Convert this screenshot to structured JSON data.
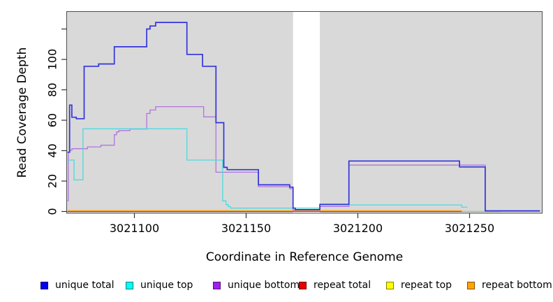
{
  "chart_data": {
    "type": "line",
    "subtype": "step",
    "title": "",
    "xlabel": "Coordinate in Reference Genome",
    "ylabel": "Read Coverage Depth",
    "xlim": [
      3021069.7,
      3021282.5
    ],
    "ylim": [
      0,
      131.5
    ],
    "grid": false,
    "plot_background": "#d9d9d9",
    "no_data_band": {
      "x_start": 3021171,
      "x_end": 3021183
    },
    "x_ticks": [
      {
        "value": 3021100,
        "label": "3021100"
      },
      {
        "value": 3021150,
        "label": "3021150"
      },
      {
        "value": 3021200,
        "label": "3021200"
      },
      {
        "value": 3021250,
        "label": "3021250"
      }
    ],
    "y_ticks": [
      {
        "value": 0,
        "label": "0"
      },
      {
        "value": 20,
        "label": "20"
      },
      {
        "value": 40,
        "label": "40"
      },
      {
        "value": 60,
        "label": "60"
      },
      {
        "value": 80,
        "label": "80"
      },
      {
        "value": 100,
        "label": "100"
      },
      {
        "value": 120,
        "label": ""
      }
    ],
    "series": [
      {
        "name": "repeat total",
        "color": "#cc0000",
        "width": 1.2,
        "points": [
          [
            3021070,
            0
          ],
          [
            3021246.5,
            0
          ]
        ]
      },
      {
        "name": "repeat top",
        "color": "#8fce8f",
        "width": 1.6,
        "points": [
          [
            3021246.5,
            0
          ],
          [
            3021264,
            0
          ]
        ]
      },
      {
        "name": "repeat bottom",
        "color": "#ffa51e",
        "width": 1.6,
        "points": [
          [
            3021070,
            0
          ],
          [
            3021246.5,
            0
          ]
        ]
      },
      {
        "name": "unique bottom",
        "color": "#b175dc",
        "width": 1.3,
        "points": [
          [
            3021070,
            7
          ],
          [
            3021070.4,
            39
          ],
          [
            3021071,
            40.2
          ],
          [
            3021072,
            41.3
          ],
          [
            3021079,
            42.5
          ],
          [
            3021085,
            43.6
          ],
          [
            3021091,
            50.5
          ],
          [
            3021092,
            52.3
          ],
          [
            3021093,
            53.2
          ],
          [
            3021098,
            54.2
          ],
          [
            3021105.5,
            64.4
          ],
          [
            3021107,
            66.7
          ],
          [
            3021109.5,
            68.9
          ],
          [
            3021131,
            62.2
          ],
          [
            3021136.5,
            25.8
          ],
          [
            3021155.5,
            16.3
          ],
          [
            3021169.5,
            15
          ],
          [
            3021171,
            1
          ],
          [
            3021183,
            3.3
          ],
          [
            3021196,
            30.5
          ],
          [
            3021257,
            0.2
          ],
          [
            3021281.5,
            0.2
          ]
        ]
      },
      {
        "name": "unique top",
        "color": "#4fd9de",
        "width": 1.3,
        "points": [
          [
            3021070,
            33.8
          ],
          [
            3021073,
            20.8
          ],
          [
            3021077,
            54.4
          ],
          [
            3021123.5,
            33.8
          ],
          [
            3021139.5,
            7
          ],
          [
            3021141,
            4.5
          ],
          [
            3021142,
            3.2
          ],
          [
            3021143,
            2.2
          ],
          [
            3021183,
            4.3
          ],
          [
            3021246.5,
            2.8
          ],
          [
            3021249,
            2.8
          ]
        ]
      },
      {
        "name": "unique total",
        "color": "#3333dd",
        "width": 1.7,
        "points": [
          [
            3021070,
            39
          ],
          [
            3021071,
            70
          ],
          [
            3021072,
            62
          ],
          [
            3021074,
            61
          ],
          [
            3021077.5,
            95.5
          ],
          [
            3021084,
            97
          ],
          [
            3021091,
            108.3
          ],
          [
            3021105.5,
            120
          ],
          [
            3021107,
            122
          ],
          [
            3021109.5,
            124.3
          ],
          [
            3021123.5,
            103.3
          ],
          [
            3021130.5,
            95.5
          ],
          [
            3021136.5,
            58.4
          ],
          [
            3021140,
            29
          ],
          [
            3021141.5,
            27.5
          ],
          [
            3021155.5,
            17.5
          ],
          [
            3021169.5,
            16
          ],
          [
            3021171,
            2.2
          ],
          [
            3021172,
            1.2
          ],
          [
            3021183,
            4.7
          ],
          [
            3021196,
            33.2
          ],
          [
            3021245.5,
            29.3
          ],
          [
            3021257,
            0.4
          ],
          [
            3021281.5,
            0.4
          ]
        ]
      }
    ]
  },
  "legend": {
    "items": [
      {
        "label": "unique total",
        "color": "#0000ee"
      },
      {
        "label": "unique top",
        "color": "#00ffff"
      },
      {
        "label": "unique bottom",
        "color": "#a020f0"
      },
      {
        "label": "repeat total",
        "color": "#e60000"
      },
      {
        "label": "repeat top",
        "color": "#ffff00"
      },
      {
        "label": "repeat bottom",
        "color": "#ffa500"
      }
    ]
  }
}
